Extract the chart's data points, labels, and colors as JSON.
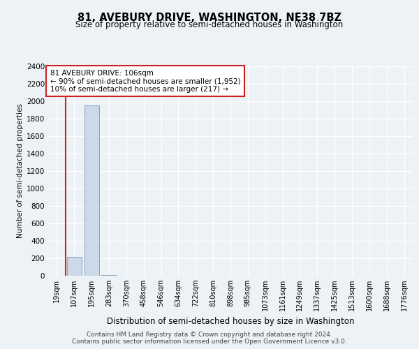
{
  "title": "81, AVEBURY DRIVE, WASHINGTON, NE38 7BZ",
  "subtitle": "Size of property relative to semi-detached houses in Washington",
  "xlabel": "Distribution of semi-detached houses by size in Washington",
  "ylabel": "Number of semi-detached properties",
  "categories": [
    "19sqm",
    "107sqm",
    "195sqm",
    "283sqm",
    "370sqm",
    "458sqm",
    "546sqm",
    "634sqm",
    "722sqm",
    "810sqm",
    "898sqm",
    "985sqm",
    "1073sqm",
    "1161sqm",
    "1249sqm",
    "1337sqm",
    "1425sqm",
    "1513sqm",
    "1600sqm",
    "1688sqm",
    "1776sqm"
  ],
  "values": [
    2,
    217,
    1952,
    5,
    2,
    1,
    1,
    1,
    1,
    1,
    1,
    1,
    1,
    1,
    1,
    1,
    1,
    1,
    1,
    1,
    1
  ],
  "highlight_line_index": 1,
  "highlight_color": "#cc2222",
  "bar_color": "#ccd9e8",
  "bar_edge_color": "#7799bb",
  "ylim": [
    0,
    2400
  ],
  "yticks": [
    0,
    200,
    400,
    600,
    800,
    1000,
    1200,
    1400,
    1600,
    1800,
    2000,
    2200,
    2400
  ],
  "annotation_text": "81 AVEBURY DRIVE: 106sqm\n← 90% of semi-detached houses are smaller (1,952)\n10% of semi-detached houses are larger (217) →",
  "annotation_box_facecolor": "#ffffff",
  "annotation_box_edgecolor": "#cc2222",
  "footer": "Contains HM Land Registry data © Crown copyright and database right 2024.\nContains public sector information licensed under the Open Government Licence v3.0.",
  "background_color": "#edf2f7",
  "grid_color": "#ffffff",
  "title_fontsize": 10.5,
  "subtitle_fontsize": 8.5,
  "ylabel_fontsize": 7.5,
  "xlabel_fontsize": 8.5,
  "tick_fontsize": 7.5,
  "xtick_fontsize": 7.0,
  "annotation_fontsize": 7.5,
  "footer_fontsize": 6.5
}
